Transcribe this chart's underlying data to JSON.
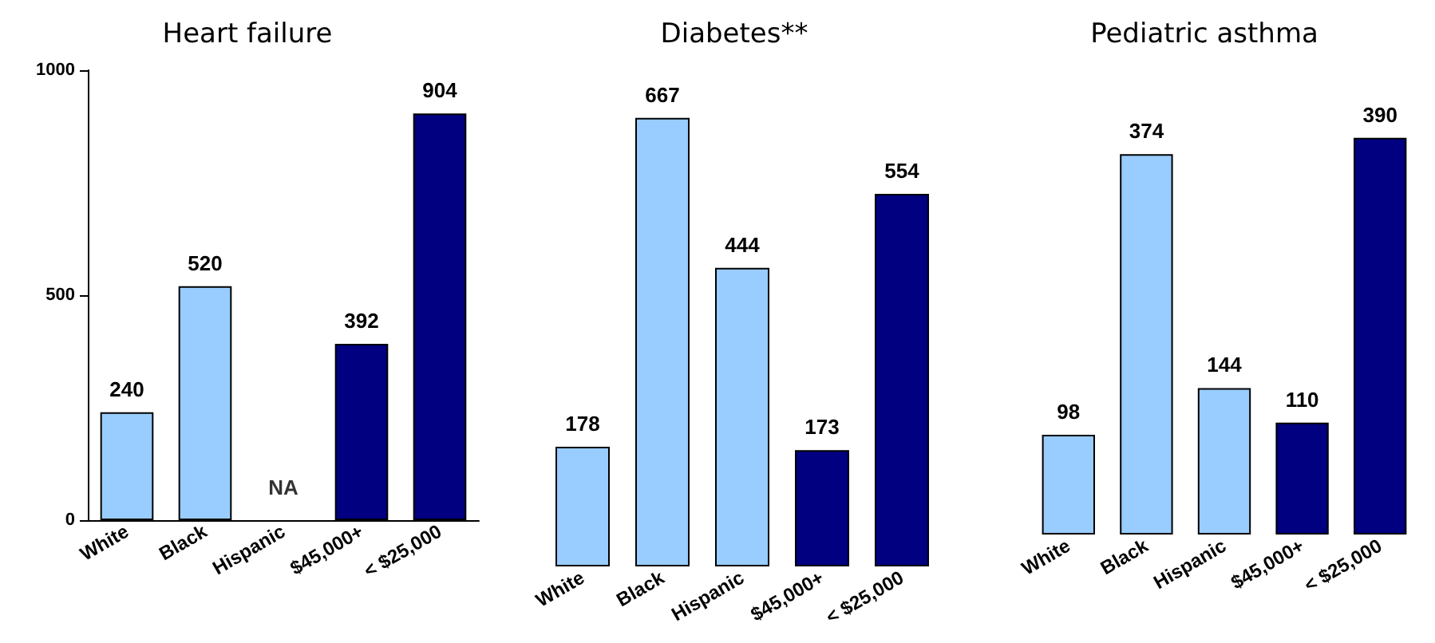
{
  "chart_data": [
    {
      "type": "bar",
      "title": "Heart failure",
      "categories": [
        "White",
        "Black",
        "Hispanic",
        "$45,000+",
        "< $25,000"
      ],
      "values": [
        240,
        520,
        null,
        392,
        904
      ],
      "colors": [
        "#99ccff",
        "#99ccff",
        "#99ccff",
        "#000080",
        "#000080"
      ],
      "value_labels": [
        "240",
        "520",
        "NA",
        "392",
        "904"
      ],
      "ylim": [
        0,
        1000
      ],
      "yticks": [
        0,
        500,
        1000
      ]
    },
    {
      "type": "bar",
      "title": "Diabetes**",
      "categories": [
        "White",
        "Black",
        "Hispanic",
        "$45,000+",
        "< $25,000"
      ],
      "values": [
        178,
        667,
        444,
        173,
        554
      ],
      "colors": [
        "#99ccff",
        "#99ccff",
        "#99ccff",
        "#000080",
        "#000080"
      ],
      "data_labels": true,
      "tick_labels": "x"
    },
    {
      "type": "bar",
      "title": "Pediatric asthma",
      "categories": [
        "White",
        "Black",
        "Hispanic",
        "$45,000+",
        "< $25,000"
      ],
      "values": [
        98,
        374,
        144,
        110,
        390
      ],
      "colors": [
        "#99ccff",
        "#99ccff",
        "#99ccff",
        "#000080",
        "#000080"
      ],
      "data_labels": true,
      "tick_labels": "x"
    }
  ]
}
